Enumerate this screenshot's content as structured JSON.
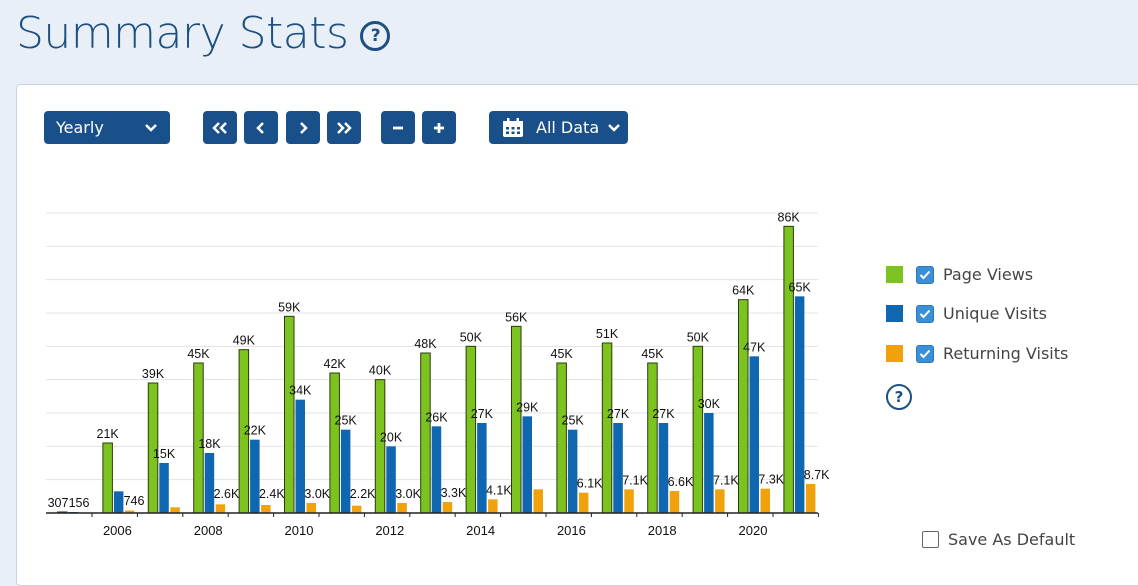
{
  "page": {
    "title": "Summary Stats",
    "help_icon": "question-circle-icon"
  },
  "toolbar": {
    "period_select": "Yearly",
    "first_icon": "double-chevron-left-icon",
    "prev_icon": "chevron-left-icon",
    "next_icon": "chevron-right-icon",
    "last_icon": "double-chevron-right-icon",
    "zoom_out_icon": "minus-icon",
    "zoom_in_icon": "plus-icon",
    "calendar_icon": "calendar-icon",
    "range_label": "All Data"
  },
  "legend": {
    "items": [
      {
        "label": "Page Views",
        "color": "#7dc31f",
        "checked": true
      },
      {
        "label": "Unique Visits",
        "color": "#0f67b1",
        "checked": true
      },
      {
        "label": "Returning Visits",
        "color": "#f1a20b",
        "checked": true
      }
    ]
  },
  "save_default_label": "Save As Default",
  "chart_data": {
    "type": "bar",
    "categories": [
      "2005",
      "2006",
      "2007",
      "2008",
      "2009",
      "2010",
      "2011",
      "2012",
      "2013",
      "2014",
      "2015",
      "2016",
      "2017",
      "2018",
      "2019",
      "2020",
      "2021"
    ],
    "x_tick_labels": [
      "2006",
      "2008",
      "2010",
      "2012",
      "2014",
      "2016",
      "2018",
      "2020"
    ],
    "ylim": [
      0,
      90000
    ],
    "grid": true,
    "legend_position": "right",
    "series": [
      {
        "name": "Page Views",
        "color": "#7dc31f",
        "values": [
          307,
          21000,
          39000,
          45000,
          49000,
          59000,
          42000,
          40000,
          48000,
          50000,
          56000,
          45000,
          51000,
          45000,
          50000,
          64000,
          86000
        ],
        "labels": [
          "307",
          "21K",
          "39K",
          "45K",
          "49K",
          "59K",
          "42K",
          "40K",
          "48K",
          "50K",
          "56K",
          "45K",
          "51K",
          "45K",
          "50K",
          "64K",
          "86K"
        ]
      },
      {
        "name": "Unique Visits",
        "color": "#0f67b1",
        "values": [
          156,
          6500,
          15000,
          18000,
          22000,
          34000,
          25000,
          20000,
          26000,
          27000,
          29000,
          25000,
          27000,
          27000,
          30000,
          47000,
          65000
        ],
        "labels": [
          "156",
          "",
          "15K",
          "18K",
          "22K",
          "34K",
          "25K",
          "20K",
          "26K",
          "27K",
          "29K",
          "25K",
          "27K",
          "27K",
          "30K",
          "47K",
          "65K"
        ]
      },
      {
        "name": "Returning Visits",
        "color": "#f1a20b",
        "values": [
          0,
          746,
          1700,
          2600,
          2400,
          3000,
          2200,
          3000,
          3300,
          4100,
          7100,
          6100,
          7100,
          6600,
          7100,
          7300,
          8700
        ],
        "labels": [
          "",
          "746",
          "",
          "2.6K",
          "2.4K",
          "3.0K",
          "2.2K",
          "3.0K",
          "3.3K",
          "4.1K",
          "",
          "6.1K",
          "7.1K",
          "6.6K",
          "7.1K",
          "7.3K",
          "8.7K"
        ]
      }
    ]
  }
}
